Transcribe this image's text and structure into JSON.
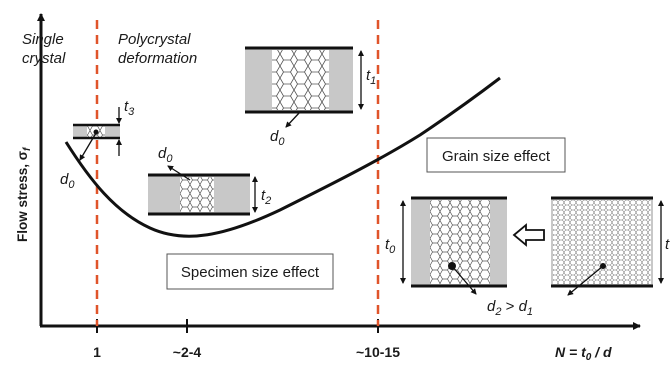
{
  "regions": {
    "single_crystal": [
      "Single",
      "crystal"
    ],
    "polycrystal": [
      "Polycrystal",
      "deformation"
    ]
  },
  "axes": {
    "y_label": "Flow stress, σ",
    "y_label_sub": "f",
    "x_label": "N = t",
    "x_label_sub": "0",
    "x_label_tail": " / d",
    "x_ticks": [
      "1",
      "~2-4",
      "~10-15"
    ]
  },
  "effects": {
    "grain": "Grain size effect",
    "specimen": "Specimen size effect"
  },
  "specimens": {
    "tiny": {
      "thickness": "t",
      "thickness_sub": "3",
      "grain": "d",
      "grain_sub": "0"
    },
    "top": {
      "thickness": "t",
      "thickness_sub": "1",
      "grain": "d",
      "grain_sub": "0"
    },
    "mid": {
      "thickness": "t",
      "thickness_sub": "2",
      "grain": "d",
      "grain_sub": "0"
    },
    "coarse": {
      "thickness": "t",
      "thickness_sub": "0"
    },
    "fine": {
      "thickness": "t"
    },
    "relation": {
      "a": "d",
      "a_sub": "2",
      "op": " > ",
      "b": "d",
      "b_sub": "1"
    }
  },
  "colors": {
    "dashed": "#e0542a",
    "frame": "#c8c8c8",
    "plate": "#111111",
    "box_border": "#555555",
    "arrow_fill": "#ffffff"
  }
}
